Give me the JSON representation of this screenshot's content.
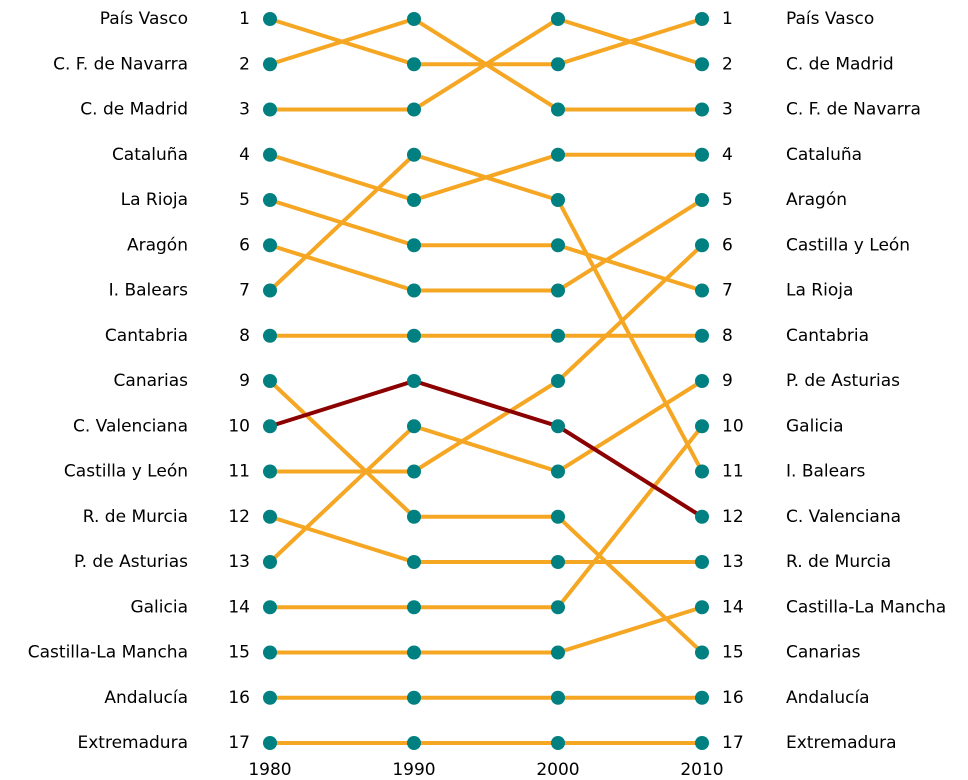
{
  "chart_data": {
    "type": "bump",
    "x": [
      1980,
      1990,
      2000,
      2010
    ],
    "xlim": [
      1980,
      2010
    ],
    "xticks": [
      1980,
      1990,
      2000,
      2010
    ],
    "ylim": [
      1,
      17
    ],
    "yticks": [
      1,
      2,
      3,
      4,
      5,
      6,
      7,
      8,
      9,
      10,
      11,
      12,
      13,
      14,
      15,
      16,
      17
    ],
    "marker_color": "#008080",
    "series": [
      {
        "name": "País Vasco",
        "color": "#f5a623",
        "values": [
          1,
          2,
          2,
          1
        ]
      },
      {
        "name": "C. F. de Navarra",
        "color": "#f5a623",
        "values": [
          2,
          1,
          3,
          3
        ]
      },
      {
        "name": "C. de Madrid",
        "color": "#f5a623",
        "values": [
          3,
          3,
          1,
          2
        ]
      },
      {
        "name": "Cataluña",
        "color": "#f5a623",
        "values": [
          4,
          5,
          4,
          4
        ]
      },
      {
        "name": "La Rioja",
        "color": "#f5a623",
        "values": [
          5,
          6,
          6,
          7
        ]
      },
      {
        "name": "Aragón",
        "color": "#f5a623",
        "values": [
          6,
          7,
          7,
          5
        ]
      },
      {
        "name": "I. Balears",
        "color": "#f5a623",
        "values": [
          7,
          4,
          5,
          11
        ]
      },
      {
        "name": "Cantabria",
        "color": "#f5a623",
        "values": [
          8,
          8,
          8,
          8
        ]
      },
      {
        "name": "Canarias",
        "color": "#f5a623",
        "values": [
          9,
          12,
          12,
          15
        ]
      },
      {
        "name": "C. Valenciana",
        "color": "#8b0000",
        "values": [
          10,
          9,
          10,
          12
        ]
      },
      {
        "name": "Castilla y León",
        "color": "#f5a623",
        "values": [
          11,
          11,
          9,
          6
        ]
      },
      {
        "name": "R. de Murcia",
        "color": "#f5a623",
        "values": [
          12,
          13,
          13,
          13
        ]
      },
      {
        "name": "P. de Asturias",
        "color": "#f5a623",
        "values": [
          13,
          10,
          11,
          9
        ]
      },
      {
        "name": "Galicia",
        "color": "#f5a623",
        "values": [
          14,
          14,
          14,
          10
        ]
      },
      {
        "name": "Castilla-La Mancha",
        "color": "#f5a623",
        "values": [
          15,
          15,
          15,
          14
        ]
      },
      {
        "name": "Andalucía",
        "color": "#f5a623",
        "values": [
          16,
          16,
          16,
          16
        ]
      },
      {
        "name": "Extremadura",
        "color": "#f5a623",
        "values": [
          17,
          17,
          17,
          17
        ]
      }
    ]
  }
}
